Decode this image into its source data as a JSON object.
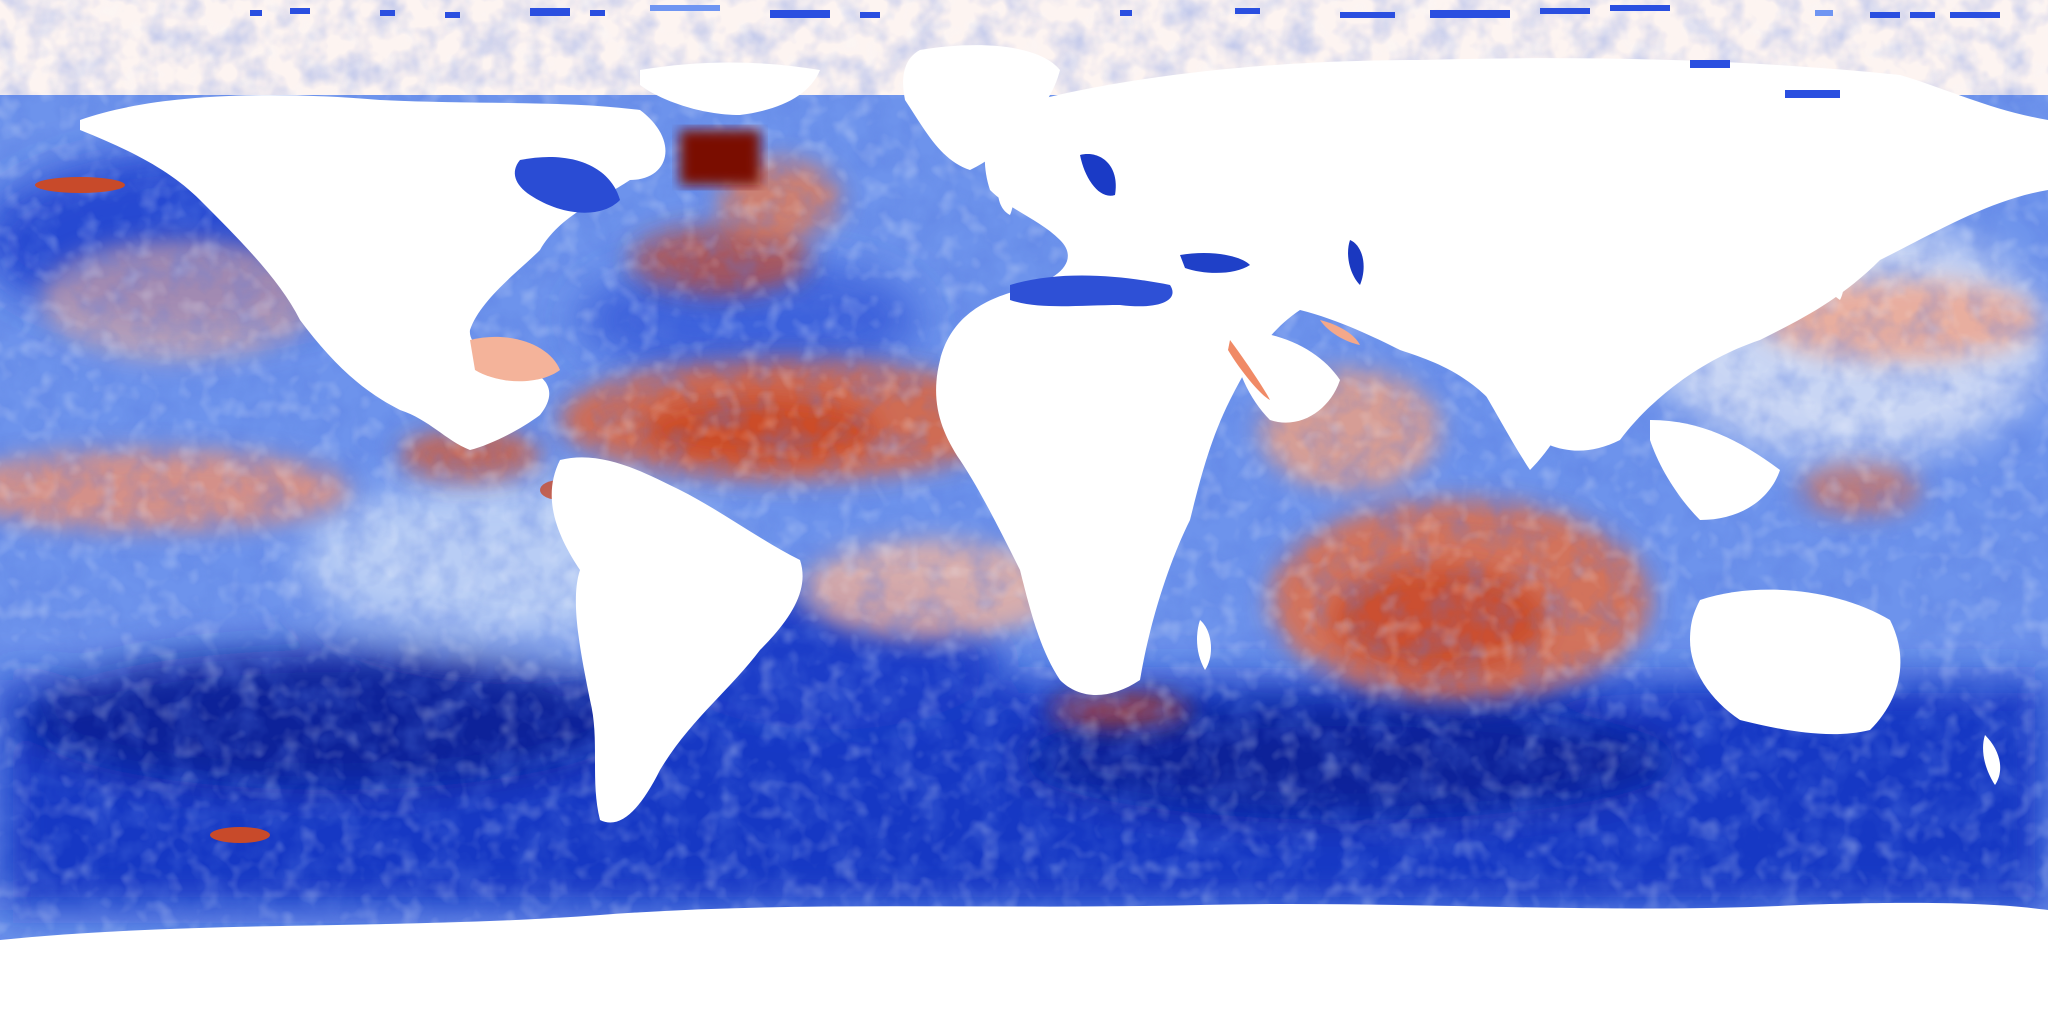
{
  "map": {
    "projection": "equirectangular",
    "field": "ocean-anomaly",
    "colormap": {
      "deep_negative": "#0a1a8c",
      "negative": "#1f48d6",
      "mild_negative": "#7fa3f0",
      "neutral": "#f5f5fb",
      "mild_positive": "#f4b49a",
      "positive": "#dd5a32",
      "deep_positive": "#7a1000"
    },
    "land_color": "#ffffff",
    "polar_ice_tint": "#fdf4f1",
    "labels": []
  }
}
